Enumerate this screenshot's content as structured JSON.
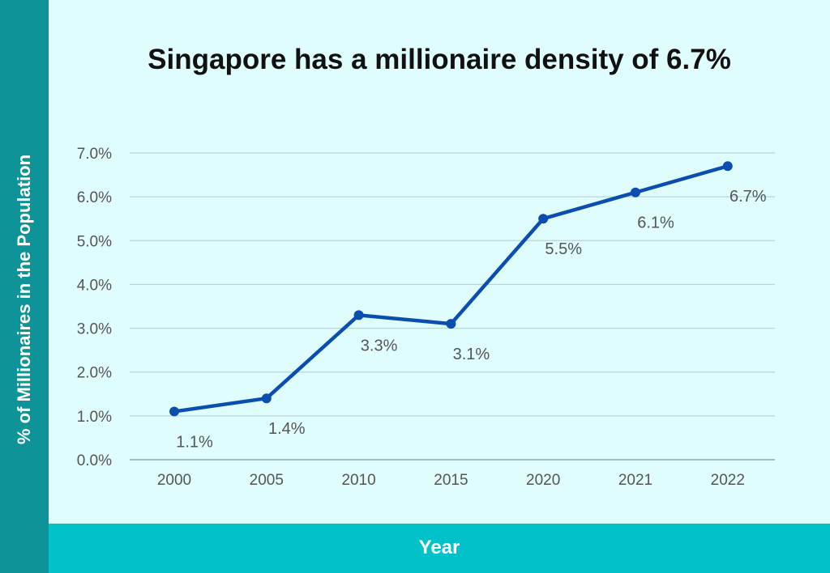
{
  "chart_data": {
    "type": "line",
    "title": "Singapore has a millionaire density of 6.7%",
    "xlabel": "Year",
    "ylabel": "% of Millionaires in the Population",
    "categories": [
      "2000",
      "2005",
      "2010",
      "2015",
      "2020",
      "2021",
      "2022"
    ],
    "series": [
      {
        "values": [
          1.1,
          1.4,
          3.3,
          3.1,
          5.5,
          6.1,
          6.7
        ]
      }
    ],
    "data_labels": [
      "1.1%",
      "1.4%",
      "3.3%",
      "3.1%",
      "5.5%",
      "6.1%",
      "6.7%"
    ],
    "yticks": [
      "0.0%",
      "1.0%",
      "2.0%",
      "3.0%",
      "4.0%",
      "5.0%",
      "6.0%",
      "7.0%"
    ],
    "ylim": [
      0,
      7
    ],
    "grid": true,
    "legend": "none",
    "colors": {
      "line": "#0a4fb0",
      "background": "#e0fdfd",
      "y_band": "#0e9498",
      "x_band": "#00c2c8",
      "grid": "#b7d6d8"
    }
  }
}
